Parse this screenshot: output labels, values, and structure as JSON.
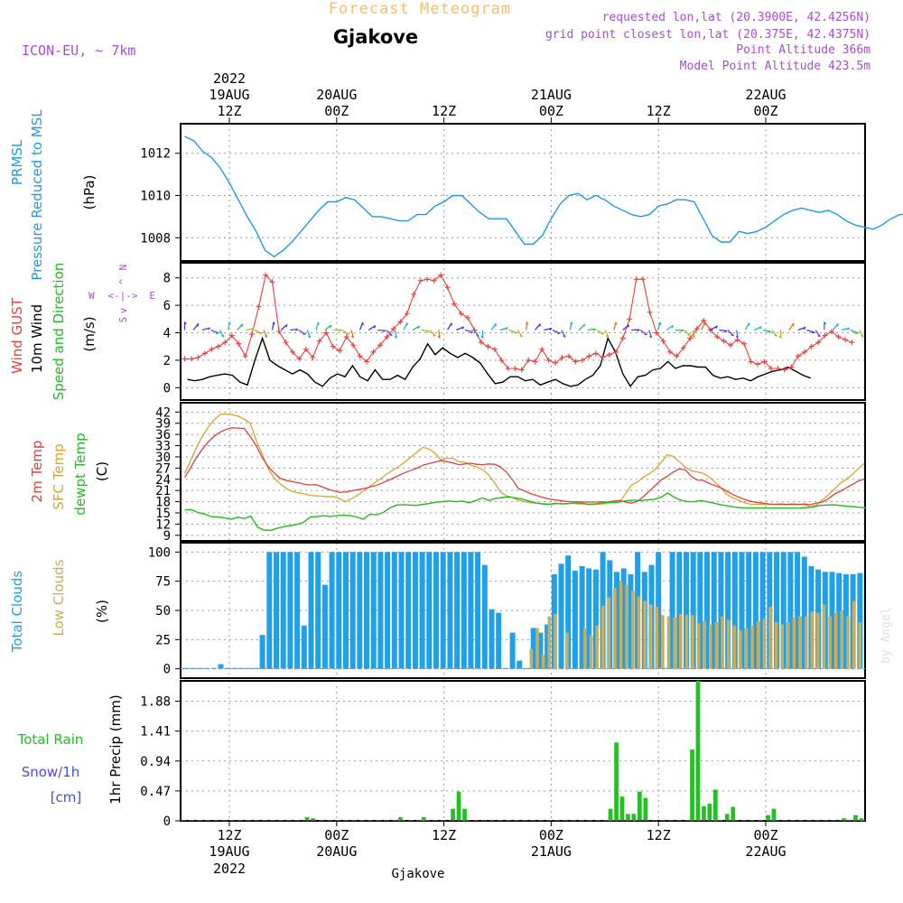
{
  "header": {
    "title_faint": "Forecast Meteogram",
    "location": "Gjakove",
    "model": "ICON-EU,  ~ 7km",
    "requested": "requested lon,lat (20.3900E, 42.4256N)",
    "grid_point": "grid point closest lon,lat (20.375E, 42.4375N)",
    "point_altitude": "Point Altitude 366m",
    "model_altitude": "Model Point Altitude 423.5m",
    "credit": "by Angel",
    "footer_location": "Gjakove"
  },
  "time_axis": {
    "top_year": "2022",
    "bottom_year": "2022",
    "ticks": [
      {
        "hour": 0,
        "top_date": "19AUG",
        "top_time": "12Z",
        "bottom_time": "12Z",
        "bottom_date": "19AUG"
      },
      {
        "hour": 12,
        "top_date": "20AUG",
        "top_time": "00Z",
        "bottom_time": "00Z",
        "bottom_date": "20AUG"
      },
      {
        "hour": 24,
        "top_date": "",
        "top_time": "12Z",
        "bottom_time": "12Z",
        "bottom_date": ""
      },
      {
        "hour": 36,
        "top_date": "21AUG",
        "top_time": "00Z",
        "bottom_time": "00Z",
        "bottom_date": "21AUG"
      },
      {
        "hour": 48,
        "top_date": "",
        "top_time": "12Z",
        "bottom_time": "12Z",
        "bottom_date": ""
      },
      {
        "hour": 60,
        "top_date": "22AUG",
        "top_time": "00Z",
        "bottom_time": "00Z",
        "bottom_date": "22AUG"
      }
    ]
  },
  "colors": {
    "pressure": "#1e9be6",
    "gust": "#e8403c",
    "wind": "#000000",
    "temp2m": "#e04040",
    "sfc": "#d9a530",
    "dewpt": "#22bb22",
    "total_cloud": "#1ea0ea",
    "low_cloud": "#c9ad5a",
    "rain": "#22c022",
    "snow": "#4a4ae8",
    "header_purple": "#a64fd6",
    "title_faint": "#f0c070",
    "grid": "#9a9a9a"
  },
  "chart_data": [
    {
      "id": "pressure",
      "type": "line",
      "title_lines": [
        "PRMSL",
        "Pressure Reduced to MSL"
      ],
      "ylabel": "(hPa)",
      "yticks": [
        1008,
        1010,
        1012
      ],
      "ylim": [
        1006.9,
        1013.4
      ],
      "x_start_hour": -5,
      "x_step_hour": 1,
      "values": [
        1012.8,
        1012.6,
        1012.1,
        1011.8,
        1011.3,
        1010.6,
        1009.8,
        1009,
        1008.3,
        1007.4,
        1007.1,
        1007.4,
        1007.8,
        1008.3,
        1008.8,
        1009.3,
        1009.7,
        1009.7,
        1009.9,
        1009.8,
        1009.4,
        1009,
        1009,
        1008.9,
        1008.8,
        1008.8,
        1009.1,
        1009.1,
        1009.5,
        1009.7,
        1010,
        1010,
        1009.6,
        1009.2,
        1008.9,
        1008.9,
        1008.9,
        1008.3,
        1007.7,
        1007.7,
        1008.1,
        1008.9,
        1009.6,
        1010,
        1010.1,
        1009.8,
        1010,
        1009.8,
        1009.5,
        1009.3,
        1009.1,
        1009,
        1009.1,
        1009.5,
        1009.6,
        1009.8,
        1009.8,
        1009.7,
        1008.9,
        1008.1,
        1007.8,
        1007.8,
        1008.3,
        1008.2,
        1008.3,
        1008.5,
        1008.8,
        1009.1,
        1009.3,
        1009.4,
        1009.3,
        1009.2,
        1009.3,
        1009.1,
        1008.8,
        1008.6,
        1008.5,
        1008.4,
        1008.6,
        1008.9,
        1009.1,
        1009.1,
        1009.1,
        1008.8,
        1008.5,
        1008
      ]
    },
    {
      "id": "wind",
      "type": "line",
      "title_lines": [
        "Wind GUST",
        "10m Wind",
        "Speed and Direction"
      ],
      "ylabel": "(m/s)",
      "compass": {
        "w": "W",
        "e": "E",
        "n": "N",
        "s": "S",
        "ew_arrow": "<-|->",
        "n_arrow": "^",
        "s_arrow": "v"
      },
      "yticks": [
        0,
        2,
        4,
        6,
        8
      ],
      "ylim": [
        -0.9,
        9.1
      ],
      "x_start_hour": -5,
      "x_step_hour": 1,
      "gust": [
        2.1,
        2.1,
        2.2,
        2.5,
        2.8,
        3.0,
        3.3,
        3.8,
        3.2,
        2.3,
        3.9,
        5.9,
        8.2,
        7.7,
        4.1,
        3.3,
        2.6,
        2.1,
        2.8,
        2.2,
        3.4,
        4.0,
        3.0,
        2.7,
        3.7,
        3.1,
        2.3,
        1.9,
        2.6,
        3.1,
        3.7,
        4.3,
        4.8,
        5.4,
        6.8,
        7.8,
        7.9,
        7.8,
        8.2,
        7.3,
        6.1,
        5.4,
        5.1,
        4.2,
        3.3,
        3.0,
        2.8,
        2.0,
        1.4,
        1.4,
        1.3,
        2.0,
        1.9,
        2.8,
        2.0,
        1.8,
        2.2,
        2.3,
        1.9,
        2.0,
        2.3,
        2.5,
        2.2,
        2.4,
        2.6,
        3.6,
        5.0,
        7.9,
        7.9,
        5.5,
        4.0,
        3.4,
        2.6,
        2.3,
        2.9,
        3.6,
        4.3,
        4.9,
        4.2,
        3.7,
        3.4,
        3.1,
        3.5,
        3.2,
        1.9,
        1.7,
        1.9,
        1.4,
        1.4,
        1.3,
        1.5,
        2.3,
        2.6,
        3.0,
        3.3,
        3.8,
        4.1,
        3.7,
        3.5,
        3.3
      ],
      "wind": [
        0.6,
        0.5,
        0.6,
        0.8,
        0.9,
        1.0,
        0.9,
        0.4,
        0.2,
        2.0,
        3.6,
        2.0,
        1.6,
        1.3,
        1.0,
        1.3,
        1.0,
        0.4,
        0.1,
        0.7,
        1.0,
        0.8,
        1.6,
        0.8,
        0.5,
        1.3,
        0.6,
        0.6,
        0.9,
        0.6,
        1.5,
        2.1,
        3.2,
        2.4,
        2.9,
        2.5,
        2.2,
        2.5,
        2.2,
        1.8,
        1.0,
        0.3,
        0.4,
        0.8,
        0.8,
        0.5,
        0.6,
        0.2,
        0.4,
        0.6,
        0.3,
        0.1,
        0.2,
        0.6,
        0.9,
        1.6,
        3.6,
        2.6,
        1.0,
        0.1,
        0.8,
        0.9,
        1.3,
        1.4,
        1.9,
        1.4,
        1.6,
        1.6,
        1.5,
        1.5,
        0.9,
        0.7,
        0.8,
        0.6,
        0.7,
        0.5,
        0.8,
        1.0,
        1.2,
        1.3,
        1.5,
        1.2,
        0.9,
        0.7
      ],
      "arrow_colors": [
        "#3a3ae8",
        "#3a3ae8",
        "#7a3ae0",
        "#3a6ae8",
        "#1eb0e0",
        "#1ec0c0",
        "#22c060",
        "#a0c020",
        "#e0a020",
        "#e07020"
      ]
    },
    {
      "id": "temperature",
      "type": "line",
      "title_lines": [
        "2m Temp",
        "SFC Temp",
        "dewpt Temp"
      ],
      "ylabel": "(C)",
      "yticks": [
        9,
        12,
        15,
        18,
        21,
        24,
        27,
        30,
        33,
        36,
        39,
        42
      ],
      "ylim": [
        7.5,
        44.5
      ],
      "x_start_hour": -5,
      "x_step_hour": 1,
      "t2m": [
        24.5,
        27.1,
        29.9,
        32.1,
        34.1,
        35.6,
        36.7,
        37.4,
        37.8,
        37.7,
        37.6,
        35.5,
        33.0,
        29.9,
        27.4,
        25.7,
        24.3,
        23.7,
        23.4,
        23.1,
        22.7,
        22.5,
        22.6,
        22.0,
        21.4,
        20.9,
        20.5,
        20.6,
        20.9,
        21.2,
        21.5,
        21.9,
        22.3,
        22.9,
        23.6,
        24.3,
        25.1,
        25.8,
        26.4,
        27.0,
        27.8,
        28.2,
        28.6,
        29.0,
        28.7,
        28.4,
        27.9,
        28.1,
        28.3,
        28.0,
        27.9,
        28.1,
        28.0,
        27.3,
        25.9,
        23.9,
        21.5,
        20.9,
        20.2,
        19.7,
        19.2,
        18.8,
        18.5,
        18.3,
        18.1,
        18.0,
        18.0,
        17.9,
        17.9,
        17.9,
        18.0,
        17.9,
        18.2,
        18.3,
        17.9,
        17.6,
        18.1,
        19.4,
        20.9,
        22.4,
        23.9,
        24.8,
        26.0,
        26.8,
        26.5,
        24.8,
        23.8,
        23.7,
        22.9,
        22.3,
        21.7,
        20.8,
        19.9,
        19.2,
        18.6,
        18.1,
        17.8,
        17.6,
        17.4,
        17.3,
        17.4,
        17.3,
        17.4,
        17.3,
        17.4,
        17.2,
        17.6,
        17.9,
        18.8,
        20.0,
        20.8,
        21.7,
        22.6,
        23.5,
        24.1
      ],
      "sfc": [
        25.6,
        29.0,
        32.6,
        35.6,
        38.1,
        40.0,
        41.4,
        41.5,
        41.3,
        40.9,
        40.1,
        39.0,
        34.5,
        30.8,
        26.9,
        24.4,
        22.8,
        21.6,
        20.8,
        20.4,
        20.1,
        19.7,
        19.6,
        19.5,
        19.3,
        19.4,
        18.8,
        18.0,
        18.8,
        19.7,
        20.9,
        22.0,
        23.2,
        24.3,
        25.5,
        26.5,
        27.5,
        28.7,
        30.0,
        31.3,
        32.6,
        32.1,
        31.0,
        29.2,
        29.6,
        29.6,
        28.7,
        28.6,
        27.8,
        27.3,
        26.6,
        25.2,
        23.1,
        20.5,
        19.6,
        19.1,
        18.4,
        18.0,
        17.7,
        17.6,
        17.5,
        17.4,
        17.4,
        17.5,
        17.4,
        17.6,
        17.4,
        17.4,
        17.3,
        17.3,
        17.4,
        17.6,
        17.8,
        18.0,
        20.2,
        22.5,
        23.3,
        24.6,
        25.5,
        26.7,
        28.6,
        30.6,
        30.1,
        28.7,
        27.2,
        26.3,
        26.0,
        25.6,
        24.6,
        23.2,
        21.7,
        19.9,
        19.0,
        18.3,
        17.7,
        17.3,
        17.3,
        17.3,
        17.3,
        17.3,
        17.2,
        17.2,
        17.2,
        17.2,
        17.2,
        16.6,
        17.1,
        18.5,
        19.8,
        21.3,
        22.9,
        24.0,
        25.2,
        26.8,
        28.2
      ],
      "dewpt": [
        15.8,
        15.9,
        15.1,
        14.7,
        14.0,
        13.9,
        13.7,
        13.3,
        13.8,
        13.5,
        14.1,
        11.2,
        10.4,
        10.3,
        10.9,
        11.3,
        11.6,
        11.9,
        12.5,
        13.9,
        14.0,
        14.3,
        14.0,
        14.3,
        14.4,
        14.3,
        13.9,
        13.3,
        14.6,
        14.5,
        15.1,
        16.3,
        17.1,
        17.2,
        17.1,
        17.0,
        17.3,
        17.5,
        17.9,
        18.0,
        18.2,
        18.0,
        18.2,
        17.7,
        18.3,
        19.0,
        18.3,
        18.9,
        19.1,
        19.3,
        19.0,
        18.7,
        18.2,
        17.7,
        17.4,
        17.3,
        17.5,
        17.4,
        17.5,
        17.6,
        17.6,
        17.3,
        17.4,
        17.6,
        17.9,
        17.7,
        18.0,
        18.3,
        18.4,
        18.3,
        18.5,
        18.6,
        19.2,
        20.3,
        19.2,
        18.4,
        18.0,
        18.0,
        18.3,
        18.0,
        17.6,
        17.2,
        16.9,
        16.6,
        16.4,
        16.3,
        16.3,
        16.3,
        16.3,
        16.3,
        16.3,
        16.3,
        16.3,
        16.3,
        16.4,
        16.6,
        17.0,
        17.1,
        17.2,
        17.0,
        16.8,
        16.7,
        16.5,
        16.4
      ],
      "t2m_start_hour": -5,
      "t2m_step_hour": 0.6667
    },
    {
      "id": "clouds",
      "type": "bar",
      "title_lines": [
        "Total Clouds",
        "Low Clouds"
      ],
      "ylabel": "(%)",
      "yticks": [
        0,
        25,
        50,
        75,
        100
      ],
      "ylim": [
        -8,
        108
      ],
      "x_start_hour": -4.5,
      "x_step_hour": 1,
      "total": [
        0,
        0,
        0,
        0,
        0,
        4,
        0,
        0,
        0,
        0,
        0,
        29,
        100,
        100,
        100,
        100,
        100,
        37,
        100,
        100,
        72,
        100,
        100,
        100,
        100,
        100,
        100,
        100,
        100,
        100,
        100,
        100,
        100,
        100,
        100,
        100,
        100,
        100,
        100,
        100,
        100,
        100,
        100,
        89,
        51,
        48,
        0,
        31,
        7,
        0,
        35,
        31,
        38,
        81,
        90,
        97,
        84,
        88,
        86,
        85,
        100,
        93,
        83,
        86,
        81,
        100,
        83,
        89,
        100,
        0,
        100,
        100,
        100,
        100,
        100,
        100,
        100,
        100,
        100,
        100,
        100,
        100,
        100,
        100,
        100,
        100,
        100,
        100,
        100,
        96,
        88,
        85,
        83,
        83,
        82,
        81,
        81,
        82
      ],
      "low": [
        0,
        0,
        0,
        0,
        0,
        0,
        0,
        0,
        0,
        0,
        0,
        0,
        0,
        0,
        0,
        0,
        0,
        0,
        0,
        0,
        0,
        0,
        0,
        0,
        0,
        0,
        0,
        0,
        0,
        0,
        0,
        0,
        0,
        0,
        0,
        0,
        0,
        0,
        0,
        0,
        0,
        0,
        0,
        0,
        0,
        0,
        0,
        0,
        0,
        0,
        0,
        0,
        0,
        0,
        0,
        0,
        0,
        0,
        17,
        35,
        12,
        45,
        47,
        0,
        31,
        0,
        0,
        35,
        29,
        37,
        54,
        61,
        69,
        75,
        72,
        67,
        62,
        58,
        55,
        53,
        46,
        45,
        44,
        47,
        46,
        46,
        39,
        41,
        38,
        40,
        45,
        42,
        37,
        33,
        35,
        37,
        41,
        43,
        53,
        40,
        38,
        40,
        44,
        45,
        45,
        49,
        48,
        55,
        45,
        48,
        50,
        45,
        58,
        40
      ]
    },
    {
      "id": "precip",
      "type": "bar",
      "title_lines": [
        "Total  Rain",
        "Snow/1h",
        "[cm]"
      ],
      "ylabel": "1hr Precip (mm)",
      "ytick_labels": [
        "0",
        "0.47",
        "0.94",
        "1.41",
        "1.88"
      ],
      "yticks": [
        0,
        0.47,
        0.94,
        1.41,
        1.88
      ],
      "ylim": [
        0,
        2.2
      ],
      "x_start_hour": -4.5,
      "x_step_hour": 1,
      "rain": [
        0,
        0,
        0,
        0,
        0,
        0,
        0,
        0,
        0,
        0,
        0,
        0,
        0,
        0,
        0,
        0,
        0,
        0,
        0,
        0,
        0,
        0.06,
        0.04,
        0,
        0,
        0,
        0,
        0,
        0,
        0,
        0,
        0,
        0,
        0,
        0,
        0,
        0,
        0.06,
        0,
        0,
        0,
        0.06,
        0,
        0,
        0,
        0,
        0.19,
        0.46,
        0.19,
        0,
        0,
        0,
        0,
        0,
        0,
        0,
        0,
        0,
        0,
        0,
        0,
        0,
        0,
        0,
        0,
        0,
        0,
        0,
        0,
        0,
        0,
        0,
        0,
        0.19,
        1.23,
        0.38,
        0.11,
        0.11,
        0.46,
        0.36,
        0,
        0,
        0,
        0,
        0,
        0,
        0,
        1.12,
        2.2,
        0.23,
        0.27,
        0.49,
        0,
        0.11,
        0.22,
        0,
        0,
        0,
        0,
        0,
        0.09,
        0.19,
        0,
        0,
        0,
        0,
        0,
        0,
        0,
        0,
        0,
        0,
        0,
        0.04,
        0,
        0.09,
        0.04
      ]
    }
  ]
}
